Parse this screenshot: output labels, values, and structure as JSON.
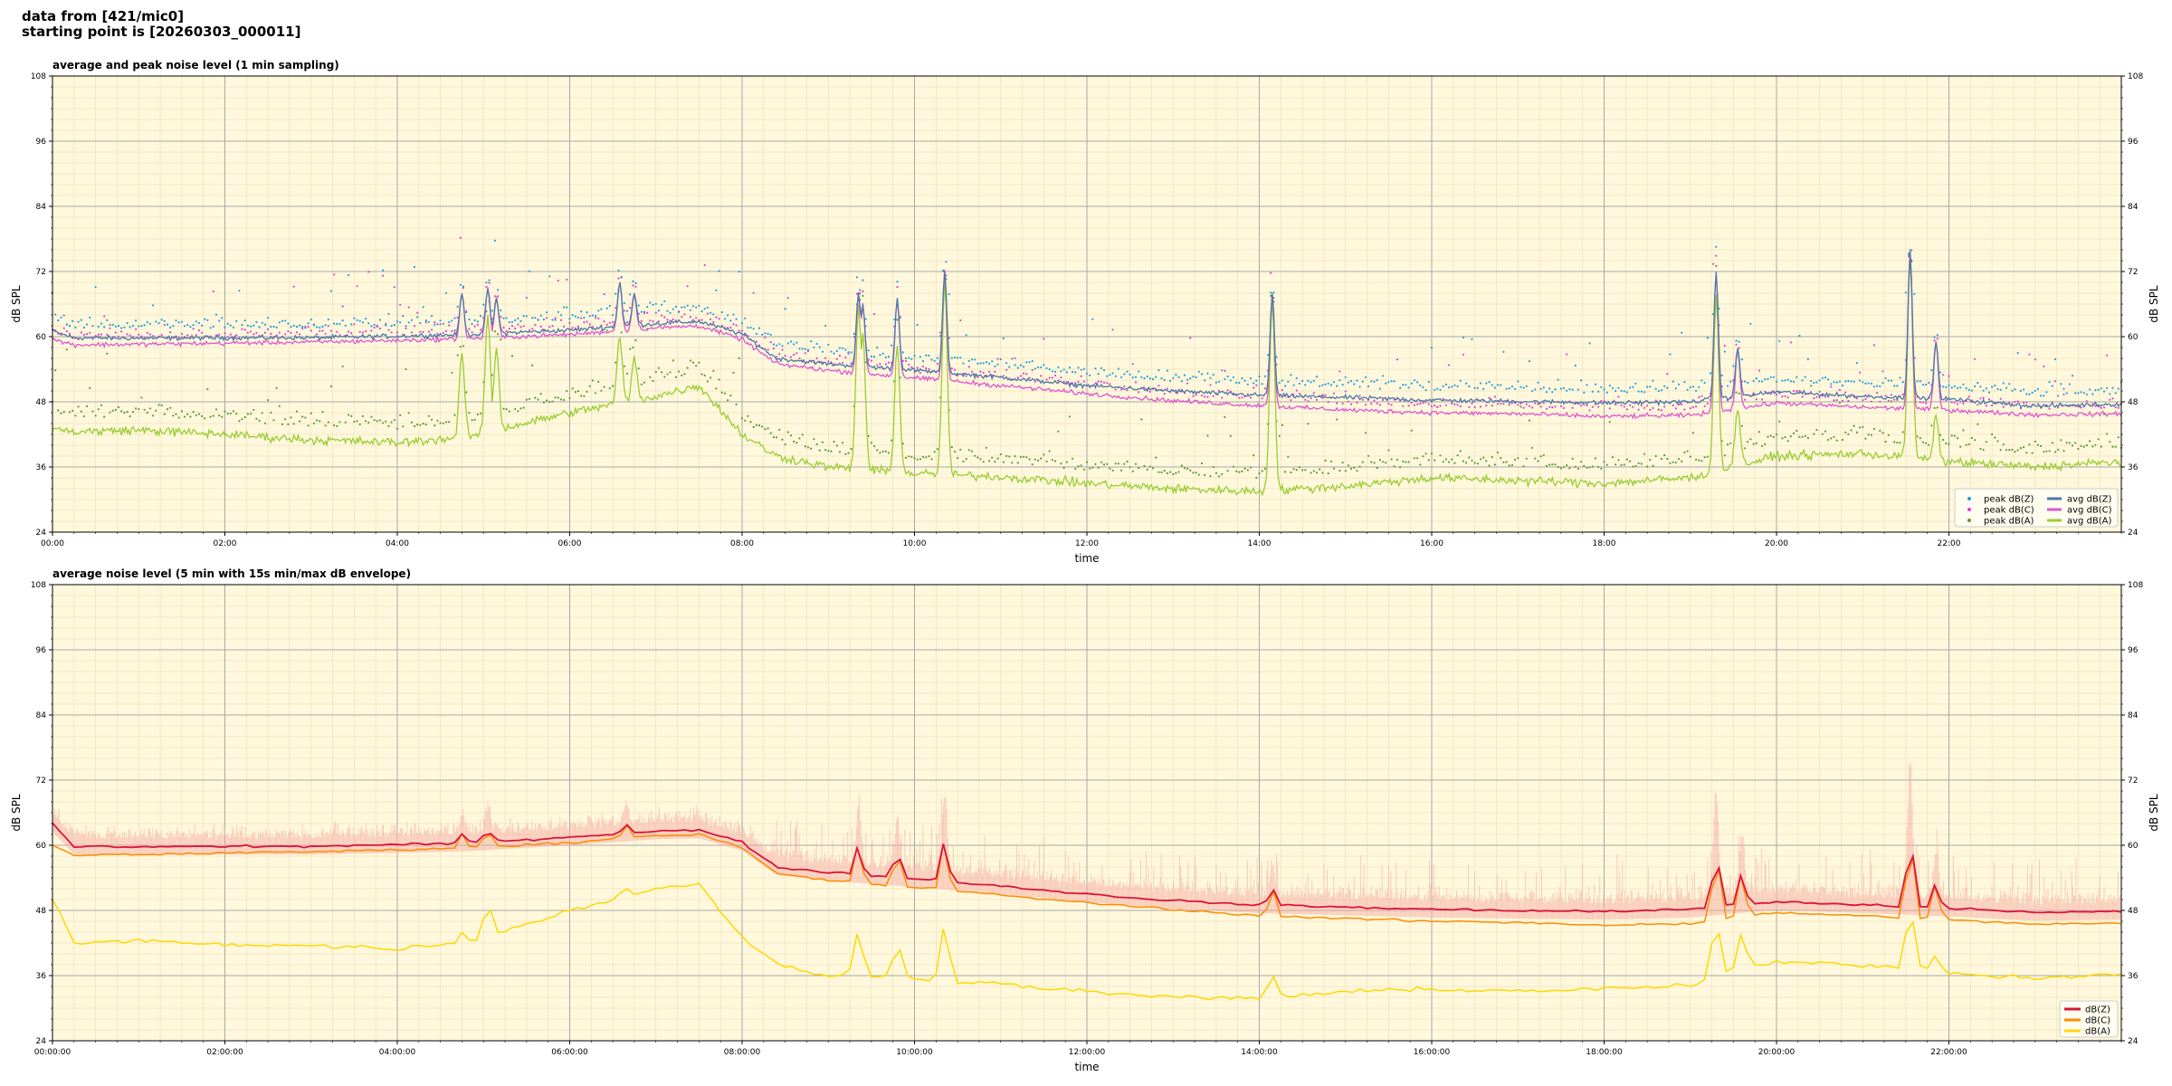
{
  "header": {
    "line1": "data from [421/mic0]",
    "line2": "starting point is [20260303_000011]"
  },
  "colors": {
    "background": "#fff8dc",
    "grid_major": "#a9a9a9",
    "peak_z": "#1f9fe0",
    "peak_c": "#e040d0",
    "peak_a": "#5a9a3a",
    "avg_z": "#4c78a8",
    "avg_c": "#e055d0",
    "avg_a": "#9acd32",
    "env_z": "#dc143c",
    "env_c": "#ff8c00",
    "env_a": "#ffd700",
    "envelope_fill": "#f4a6a0"
  },
  "chart_data": [
    {
      "type": "line",
      "title": "average and peak noise level (1 min sampling)",
      "xlabel": "time",
      "ylabel": "dB SPL",
      "ylim": [
        24,
        108
      ],
      "xlim_hours": [
        0,
        24
      ],
      "yticks": [
        "24",
        "36",
        "48",
        "60",
        "72",
        "84",
        "96",
        "108"
      ],
      "xticks": [
        "00:00",
        "02:00",
        "04:00",
        "06:00",
        "08:00",
        "10:00",
        "12:00",
        "14:00",
        "16:00",
        "18:00",
        "20:00",
        "22:00"
      ],
      "grid": true,
      "legend_position": "bottom-right",
      "legend": [
        "peak dB(Z)",
        "peak dB(C)",
        "peak dB(A)",
        "avg dB(Z)",
        "avg dB(C)",
        "avg dB(A)"
      ],
      "anchors_hours": [
        0,
        0.25,
        1,
        2,
        3,
        4,
        4.8,
        6,
        7,
        7.5,
        8,
        8.4,
        9,
        10,
        11,
        12,
        13,
        14,
        15,
        16,
        17,
        18,
        19,
        20,
        21,
        22,
        23,
        24
      ],
      "series": [
        {
          "name": "avg dB(Z)",
          "kind": "line",
          "values": [
            61,
            59.8,
            59.7,
            59.8,
            59.8,
            60.1,
            60.4,
            61.2,
            62.4,
            62.8,
            60.5,
            56,
            55,
            53.8,
            52.5,
            51,
            50,
            49.2,
            48.8,
            48.3,
            48.1,
            47.8,
            48,
            49.8,
            49,
            48.5,
            47.2,
            47.6
          ]
        },
        {
          "name": "avg dB(C)",
          "kind": "line",
          "values": [
            59.5,
            58.5,
            58.6,
            58.8,
            59,
            59.3,
            59.6,
            60.4,
            61.6,
            62,
            59.5,
            55,
            53.8,
            52.4,
            51,
            49.5,
            48.2,
            47.3,
            46.5,
            46,
            45.8,
            45.3,
            45.5,
            47.8,
            47,
            46.5,
            45.6,
            45.8
          ]
        },
        {
          "name": "avg dB(A)",
          "kind": "line",
          "values": [
            43,
            42.5,
            42.8,
            42,
            41,
            40.5,
            41.5,
            46,
            49,
            51,
            42,
            38,
            36,
            34.8,
            34.2,
            33,
            32,
            31.5,
            32.5,
            34,
            33.5,
            33,
            34,
            38,
            38.5,
            37,
            36,
            37
          ]
        },
        {
          "name": "peak dB(Z)",
          "kind": "scatter",
          "offset_db": 1.8,
          "spread_db": 3
        },
        {
          "name": "peak dB(C)",
          "kind": "scatter",
          "offset_db": 1.0,
          "spread_db": 3
        },
        {
          "name": "peak dB(A)",
          "kind": "scatter",
          "offset_db": 2.5,
          "spread_db": 4
        }
      ],
      "spikes": [
        {
          "hour": 4.75,
          "z": 68,
          "a": 57
        },
        {
          "hour": 5.05,
          "z": 69,
          "a": 64
        },
        {
          "hour": 5.15,
          "z": 67,
          "a": 58
        },
        {
          "hour": 6.58,
          "z": 70,
          "a": 60
        },
        {
          "hour": 6.75,
          "z": 68,
          "a": 56
        },
        {
          "hour": 9.35,
          "z": 68,
          "a": 66
        },
        {
          "hour": 9.4,
          "z": 66,
          "a": 61
        },
        {
          "hour": 9.8,
          "z": 67,
          "a": 59
        },
        {
          "hour": 10.35,
          "z": 72,
          "a": 70
        },
        {
          "hour": 14.15,
          "z": 68,
          "a": 67
        },
        {
          "hour": 19.3,
          "z": 72,
          "a": 67
        },
        {
          "hour": 19.55,
          "z": 58,
          "a": 47
        },
        {
          "hour": 21.55,
          "z": 76,
          "a": 74
        },
        {
          "hour": 21.85,
          "z": 59,
          "a": 45
        }
      ]
    },
    {
      "type": "line",
      "title": "average noise level (5 min with 15s min/max dB envelope)",
      "xlabel": "time",
      "ylabel": "dB SPL",
      "ylim": [
        24,
        108
      ],
      "xlim_hours": [
        0,
        24
      ],
      "yticks": [
        "24",
        "36",
        "48",
        "60",
        "72",
        "84",
        "96",
        "108"
      ],
      "xticks": [
        "00:00:00",
        "02:00:00",
        "04:00:00",
        "06:00:00",
        "08:00:00",
        "10:00:00",
        "12:00:00",
        "14:00:00",
        "16:00:00",
        "18:00:00",
        "20:00:00",
        "22:00:00"
      ],
      "grid": true,
      "legend_position": "bottom-right",
      "legend": [
        "dB(Z)",
        "dB(C)",
        "dB(A)"
      ],
      "anchors_hours": [
        0,
        0.25,
        1,
        2,
        3,
        4,
        4.8,
        6,
        7,
        7.5,
        8,
        8.4,
        9,
        10,
        11,
        12,
        13,
        14,
        15,
        16,
        17,
        18,
        19,
        20,
        21,
        22,
        23,
        24
      ],
      "series": [
        {
          "name": "dB(Z)",
          "kind": "line",
          "values": [
            64,
            59.8,
            59.7,
            59.8,
            59.8,
            60.1,
            60.4,
            61.5,
            62.6,
            62.8,
            60.5,
            56,
            55,
            53.8,
            52.5,
            51,
            49.8,
            49,
            48.6,
            48.2,
            48,
            47.8,
            48.2,
            49.6,
            49,
            48.4,
            47.6,
            47.8
          ]
        },
        {
          "name": "dB(C)",
          "kind": "line",
          "values": [
            60,
            58.2,
            58.3,
            58.6,
            58.8,
            59.2,
            59.5,
            60.5,
            61.8,
            62,
            59.5,
            54.8,
            53.5,
            52.2,
            50.8,
            49.4,
            48.2,
            47,
            46.5,
            46,
            45.8,
            45.3,
            45.6,
            47.6,
            47,
            46.2,
            45.5,
            45.6
          ]
        },
        {
          "name": "dB(A)",
          "kind": "line",
          "values": [
            50,
            42,
            42.4,
            41.8,
            41.5,
            41,
            42,
            48,
            52,
            53,
            43,
            38,
            36,
            35.5,
            34.5,
            33,
            32,
            31.8,
            33,
            33.5,
            33.2,
            33.5,
            34.2,
            38.5,
            38,
            36.5,
            35.5,
            36.5
          ]
        }
      ],
      "spikes": [
        {
          "hour": 4.75,
          "z": 62,
          "a": 44
        },
        {
          "hour": 5.05,
          "z": 63,
          "a": 49
        },
        {
          "hour": 6.65,
          "z": 64,
          "a": 52
        },
        {
          "hour": 9.35,
          "z": 60,
          "a": 44
        },
        {
          "hour": 9.8,
          "z": 59,
          "a": 42
        },
        {
          "hour": 10.35,
          "z": 61,
          "a": 45
        },
        {
          "hour": 14.15,
          "z": 52,
          "a": 36
        },
        {
          "hour": 19.3,
          "z": 59,
          "a": 46
        },
        {
          "hour": 19.6,
          "z": 55,
          "a": 44
        },
        {
          "hour": 21.55,
          "z": 62,
          "a": 48
        },
        {
          "hour": 21.85,
          "z": 53,
          "a": 40
        }
      ]
    }
  ]
}
